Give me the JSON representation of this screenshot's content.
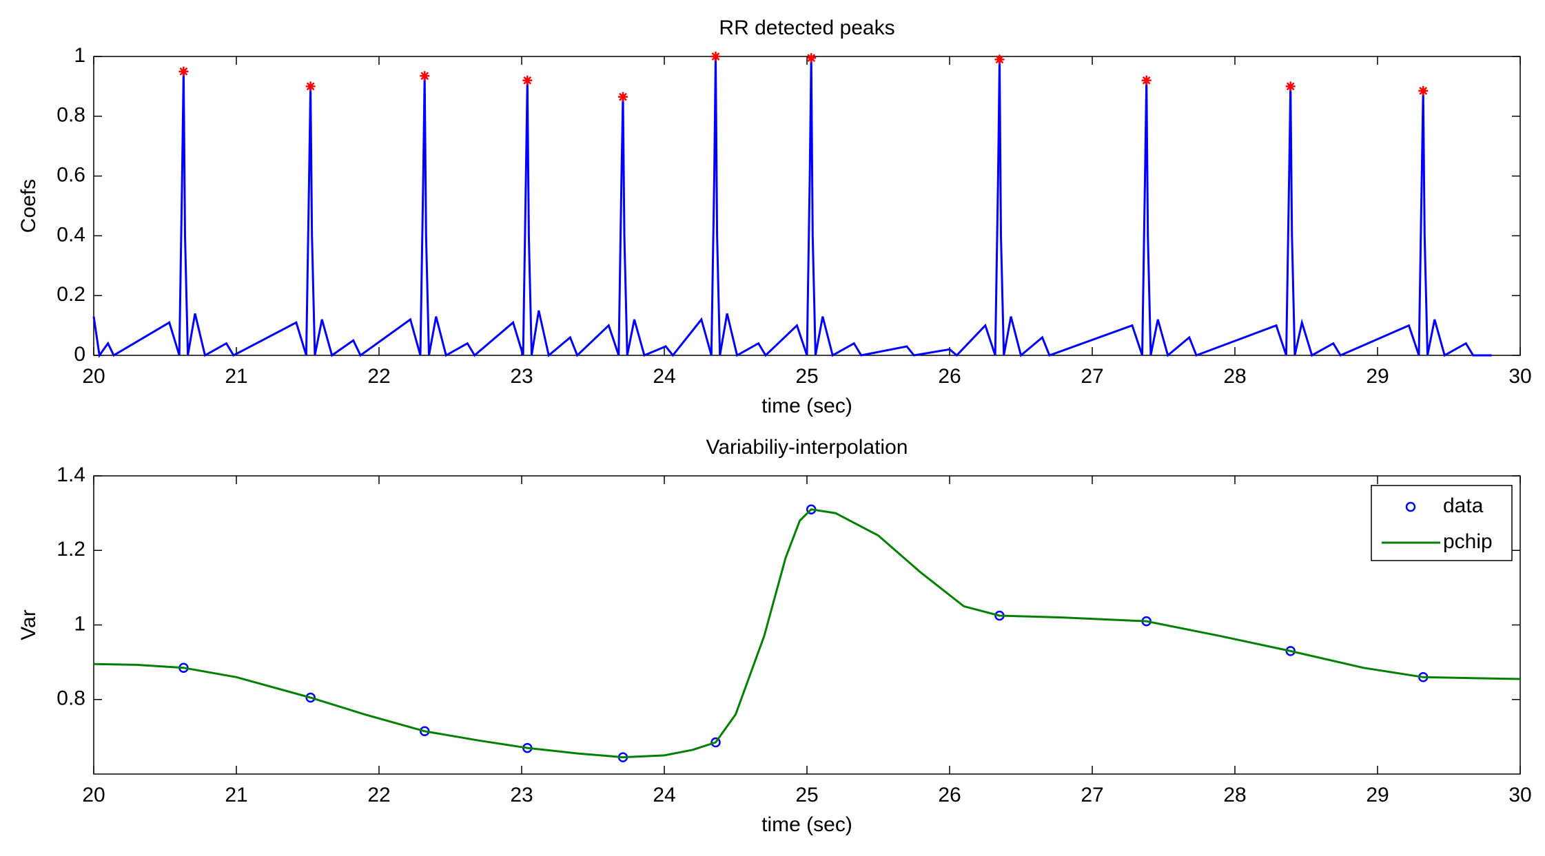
{
  "chart_data": [
    {
      "type": "line",
      "title": "RR detected peaks",
      "xlabel": "time (sec)",
      "ylabel": "Coefs",
      "xlim": [
        20,
        30
      ],
      "xticks": [
        20,
        21,
        22,
        23,
        24,
        25,
        26,
        27,
        28,
        29,
        30
      ],
      "ylim": [
        0,
        1
      ],
      "yticks": [
        0,
        0.2,
        0.4,
        0.6,
        0.8,
        1
      ],
      "series": [
        {
          "color": "#0000ff",
          "x": [
            20,
            20.04,
            20.1,
            20.14,
            20.53,
            20.6,
            20.62,
            20.63,
            20.64,
            20.66,
            20.71,
            20.78,
            20.93,
            20.98,
            21.42,
            21.49,
            21.51,
            21.52,
            21.53,
            21.55,
            21.6,
            21.67,
            21.82,
            21.87,
            22.22,
            22.29,
            22.31,
            22.32,
            22.33,
            22.35,
            22.4,
            22.47,
            22.62,
            22.67,
            22.94,
            23.01,
            23.03,
            23.04,
            23.05,
            23.07,
            23.12,
            23.19,
            23.34,
            23.39,
            23.61,
            23.68,
            23.7,
            23.71,
            23.72,
            23.74,
            23.79,
            23.86,
            24.01,
            24.06,
            24.26,
            24.33,
            24.35,
            24.36,
            24.37,
            24.39,
            24.44,
            24.51,
            24.66,
            24.71,
            24.93,
            25,
            25.02,
            25.03,
            25.04,
            25.06,
            25.11,
            25.18,
            25.33,
            25.38,
            25.7,
            25.75,
            26,
            26.05,
            26.25,
            26.32,
            26.34,
            26.35,
            26.36,
            26.38,
            26.43,
            26.5,
            26.65,
            26.7,
            27.28,
            27.35,
            27.37,
            27.38,
            27.39,
            27.41,
            27.46,
            27.53,
            27.68,
            27.73,
            28.29,
            28.36,
            28.38,
            28.39,
            28.4,
            28.42,
            28.47,
            28.54,
            28.69,
            28.74,
            29.22,
            29.29,
            29.31,
            29.32,
            29.33,
            29.35,
            29.4,
            29.47,
            29.62,
            29.67,
            29.8
          ],
          "values": [
            0.13,
            0,
            0.04,
            0,
            0.11,
            0,
            0.6,
            0.95,
            0.4,
            0,
            0.14,
            0,
            0.04,
            0,
            0.11,
            0,
            0.6,
            0.9,
            0.4,
            0,
            0.12,
            0,
            0.05,
            0,
            0.12,
            0,
            0.6,
            0.935,
            0.4,
            0,
            0.13,
            0,
            0.04,
            0,
            0.11,
            0,
            0.6,
            0.92,
            0.4,
            0,
            0.15,
            0,
            0.06,
            0,
            0.1,
            0,
            0.6,
            0.865,
            0.4,
            0,
            0.12,
            0,
            0.03,
            0,
            0.12,
            0,
            0.6,
            1,
            0.4,
            0,
            0.14,
            0,
            0.04,
            0,
            0.1,
            0,
            0.6,
            0.995,
            0.4,
            0,
            0.13,
            0,
            0.04,
            0,
            0.03,
            0,
            0.02,
            0,
            0.1,
            0,
            0.6,
            0.99,
            0.4,
            0,
            0.13,
            0,
            0.06,
            0,
            0.1,
            0,
            0.6,
            0.92,
            0.4,
            0,
            0.12,
            0,
            0.06,
            0,
            0.1,
            0,
            0.6,
            0.9,
            0.4,
            0,
            0.11,
            0,
            0.04,
            0,
            0.1,
            0,
            0.6,
            0.885,
            0.4,
            0,
            0.12,
            0,
            0.04,
            0,
            0
          ]
        },
        {
          "color": "#ff0000",
          "marker": "*",
          "x": [
            20.63,
            21.52,
            22.32,
            23.04,
            23.71,
            24.36,
            25.03,
            26.35,
            27.38,
            28.39,
            29.32
          ],
          "values": [
            0.95,
            0.9,
            0.935,
            0.92,
            0.865,
            1,
            0.995,
            0.99,
            0.92,
            0.9,
            0.885
          ]
        }
      ]
    },
    {
      "type": "line",
      "title": "Variabiliy-interpolation",
      "xlabel": "time (sec)",
      "ylabel": "Var",
      "xlim": [
        20,
        30
      ],
      "xticks": [
        20,
        21,
        22,
        23,
        24,
        25,
        26,
        27,
        28,
        29,
        30
      ],
      "ylim": [
        0.6,
        1.4
      ],
      "yticks": [
        0.8,
        1,
        1.2,
        1.4
      ],
      "legend": "upper right",
      "series": [
        {
          "name": "data",
          "color": "#0000ff",
          "marker": "o",
          "x": [
            20.63,
            21.52,
            22.32,
            23.04,
            23.71,
            24.36,
            25.03,
            26.35,
            27.38,
            28.39,
            29.32
          ],
          "values": [
            0.885,
            0.805,
            0.715,
            0.67,
            0.645,
            0.685,
            1.31,
            1.025,
            1.01,
            0.93,
            0.86
          ]
        },
        {
          "name": "pchip",
          "color": "#008000",
          "x": [
            20,
            20.3,
            20.63,
            21,
            21.52,
            21.9,
            22.32,
            22.7,
            23.04,
            23.4,
            23.71,
            24,
            24.2,
            24.36,
            24.5,
            24.7,
            24.85,
            24.95,
            25.03,
            25.2,
            25.5,
            25.8,
            26.1,
            26.35,
            26.8,
            27.38,
            27.9,
            28.39,
            28.9,
            29.32,
            29.7,
            30
          ],
          "values": [
            0.895,
            0.893,
            0.885,
            0.86,
            0.805,
            0.76,
            0.715,
            0.69,
            0.67,
            0.655,
            0.645,
            0.65,
            0.665,
            0.685,
            0.76,
            0.97,
            1.18,
            1.28,
            1.31,
            1.3,
            1.24,
            1.14,
            1.05,
            1.025,
            1.02,
            1.01,
            0.97,
            0.93,
            0.885,
            0.86,
            0.857,
            0.855
          ]
        }
      ]
    }
  ]
}
